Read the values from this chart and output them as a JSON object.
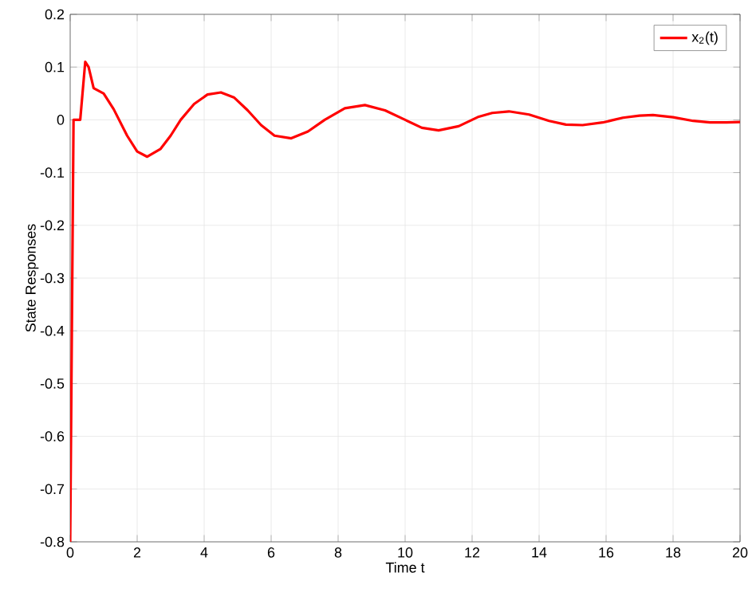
{
  "chart_data": {
    "type": "line",
    "xlabel": "Time t",
    "ylabel": "State Responses",
    "xlim": [
      0,
      20
    ],
    "ylim": [
      -0.8,
      0.2
    ],
    "xticks": [
      0,
      2,
      4,
      6,
      8,
      10,
      12,
      14,
      16,
      18,
      20
    ],
    "yticks": [
      -0.8,
      -0.7,
      -0.6,
      -0.5,
      -0.4,
      -0.3,
      -0.2,
      -0.1,
      0,
      0.1,
      0.2
    ],
    "grid": true,
    "legend": "top right",
    "marker": "none",
    "line_style": "solid",
    "series": [
      {
        "name": "x$_{2}$(t)",
        "color": "#ff0000",
        "x": [
          0,
          0.1,
          0.3,
          0.45,
          0.55,
          0.7,
          1.0,
          1.3,
          1.7,
          2.0,
          2.3,
          2.7,
          3.0,
          3.3,
          3.7,
          4.1,
          4.5,
          4.9,
          5.3,
          5.7,
          6.1,
          6.6,
          7.1,
          7.6,
          8.2,
          8.8,
          9.4,
          10.0,
          10.5,
          11.0,
          11.6,
          12.2,
          12.6,
          13.1,
          13.7,
          14.3,
          14.8,
          15.3,
          15.9,
          16.5,
          17.0,
          17.4,
          18.0,
          18.6,
          19.1,
          19.6,
          20.0
        ],
        "values": [
          -0.8,
          0,
          0,
          0.11,
          0.1,
          0.06,
          0.05,
          0.02,
          -0.03,
          -0.06,
          -0.07,
          -0.055,
          -0.03,
          0,
          0.03,
          0.048,
          0.052,
          0.042,
          0.018,
          -0.01,
          -0.03,
          -0.035,
          -0.022,
          0,
          0.022,
          0.028,
          0.018,
          0,
          -0.015,
          -0.02,
          -0.012,
          0.006,
          0.013,
          0.016,
          0.01,
          -0.002,
          -0.009,
          -0.01,
          -0.005,
          0.004,
          0.008,
          0.009,
          0.005,
          -0.002,
          -0.005,
          -0.005,
          -0.004
        ]
      }
    ]
  }
}
